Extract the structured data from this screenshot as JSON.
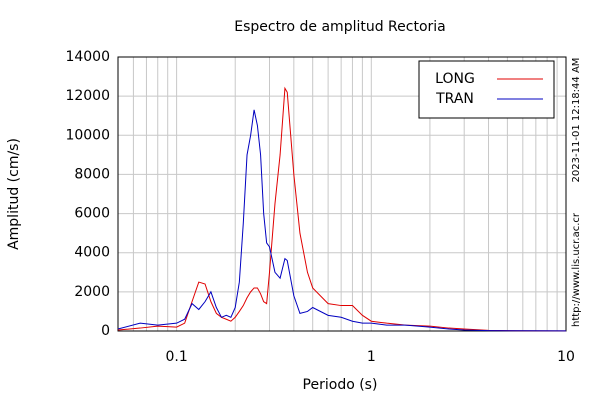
{
  "chart_data": {
    "type": "line",
    "title": "Espectro de amplitud Rectoria",
    "xlabel": "Periodo (s)",
    "ylabel": "Amplitud (cm/s)",
    "x": [
      0.05,
      0.065,
      0.08,
      0.1,
      0.11,
      0.12,
      0.13,
      0.14,
      0.15,
      0.16,
      0.17,
      0.18,
      0.19,
      0.2,
      0.21,
      0.22,
      0.23,
      0.24,
      0.25,
      0.26,
      0.27,
      0.28,
      0.29,
      0.3,
      0.32,
      0.34,
      0.36,
      0.37,
      0.4,
      0.43,
      0.47,
      0.5,
      0.6,
      0.7,
      0.8,
      0.9,
      1,
      1.2,
      1.5,
      2,
      2.5,
      3,
      4,
      6,
      10
    ],
    "series": [
      {
        "name": "LONG",
        "color": "#e00000",
        "values": [
          50,
          150,
          250,
          200,
          400,
          1500,
          2500,
          2400,
          1500,
          900,
          700,
          600,
          500,
          700,
          1000,
          1300,
          1700,
          2000,
          2200,
          2200,
          1900,
          1500,
          1400,
          3000,
          6500,
          9000,
          12400,
          12200,
          8000,
          5000,
          3000,
          2200,
          1400,
          1300,
          1300,
          800,
          500,
          400,
          300,
          250,
          150,
          100,
          30,
          10,
          5
        ]
      },
      {
        "name": "TRAN",
        "color": "#0000c0",
        "values": [
          100,
          400,
          300,
          400,
          600,
          1400,
          1100,
          1500,
          2000,
          1200,
          700,
          800,
          700,
          1200,
          2500,
          5500,
          9000,
          10000,
          11300,
          10500,
          9000,
          6000,
          4500,
          4300,
          3000,
          2700,
          3700,
          3600,
          1800,
          900,
          1000,
          1200,
          800,
          700,
          500,
          400,
          400,
          300,
          300,
          200,
          100,
          50,
          20,
          10,
          5
        ]
      }
    ],
    "xlim": [
      0.05,
      10
    ],
    "ylim": [
      0,
      14000
    ],
    "xticks": [
      0.1,
      1,
      10
    ],
    "xminorticks": [
      0.05,
      0.06,
      0.07,
      0.08,
      0.09,
      0.2,
      0.3,
      0.4,
      0.5,
      0.6,
      0.7,
      0.8,
      0.9,
      2,
      3,
      4,
      5,
      6,
      7,
      8,
      9
    ],
    "yticks": [
      0,
      2000,
      4000,
      6000,
      8000,
      10000,
      12000,
      14000
    ],
    "xscale": "log",
    "grid": true,
    "legend": "upper right",
    "annotations": [
      "2023-11-01 12:18:44 AM",
      "http://www.lis.ucr.ac.cr"
    ]
  }
}
